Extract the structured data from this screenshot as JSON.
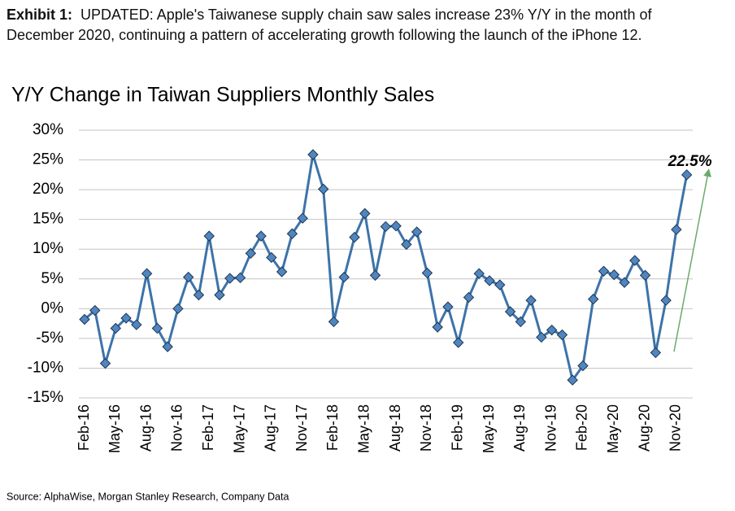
{
  "header": {
    "label": "Exhibit 1:",
    "text": "UPDATED: Apple's Taiwanese supply chain saw sales increase 23% Y/Y in the month of December 2020, continuing a pattern of accelerating growth following the launch of the iPhone 12."
  },
  "chart_data": {
    "type": "line",
    "title": "Y/Y Change in Taiwan Suppliers Monthly Sales",
    "categories": [
      "Feb-16",
      null,
      null,
      "May-16",
      null,
      null,
      "Aug-16",
      null,
      null,
      "Nov-16",
      null,
      null,
      "Feb-17",
      null,
      null,
      "May-17",
      null,
      null,
      "Aug-17",
      null,
      null,
      "Nov-17",
      null,
      null,
      "Feb-18",
      null,
      null,
      "May-18",
      null,
      null,
      "Aug-18",
      null,
      null,
      "Nov-18",
      null,
      null,
      "Feb-19",
      null,
      null,
      "May-19",
      null,
      null,
      "Aug-19",
      null,
      null,
      "Nov-19",
      null,
      null,
      "Feb-20",
      null,
      null,
      "May-20",
      null,
      null,
      "Aug-20",
      null,
      null,
      "Nov-20",
      null
    ],
    "series": [
      {
        "name": "Y/Y Change",
        "color": "#3d73a8",
        "marker_color": "#4f86c0",
        "values": [
          -1.8,
          -0.3,
          -9.2,
          -3.3,
          -1.6,
          -2.7,
          5.9,
          -3.3,
          -6.4,
          0,
          5.3,
          2.3,
          12.2,
          2.3,
          5.1,
          5.2,
          9.3,
          12.2,
          8.6,
          6.2,
          12.6,
          15.2,
          25.9,
          20.1,
          -2.2,
          5.3,
          12.0,
          16.0,
          5.6,
          13.8,
          13.9,
          10.8,
          12.9,
          6.0,
          -3.1,
          0.3,
          -5.7,
          1.9,
          5.9,
          4.7,
          4.0,
          -0.5,
          -2.2,
          1.4,
          -4.8,
          -3.6,
          -4.4,
          -12.0,
          -9.6,
          1.6,
          6.3,
          5.7,
          4.4,
          8.1,
          5.6,
          -7.4,
          1.4,
          13.3,
          22.5
        ]
      }
    ],
    "ylim": [
      -15,
      30
    ],
    "yticks": [
      {
        "value": 30,
        "label": "30%"
      },
      {
        "value": 25,
        "label": "25%"
      },
      {
        "value": 20,
        "label": "20%"
      },
      {
        "value": 15,
        "label": "15%"
      },
      {
        "value": 10,
        "label": "10%"
      },
      {
        "value": 5,
        "label": "5%"
      },
      {
        "value": 0,
        "label": "0%"
      },
      {
        "value": -5,
        "label": "-5%"
      },
      {
        "value": -10,
        "label": "-10%"
      },
      {
        "value": -15,
        "label": "-15%"
      }
    ],
    "grid": true,
    "annotation": "22.5%",
    "source": "Source: AlphaWise, Morgan Stanley Research, Company Data"
  }
}
